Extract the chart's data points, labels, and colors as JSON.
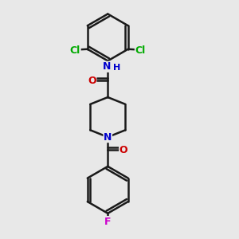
{
  "background_color": "#e8e8e8",
  "bond_color": "#1a1a1a",
  "bond_width": 1.8,
  "atom_colors": {
    "N": "#0000cc",
    "O": "#cc0000",
    "Cl": "#00aa00",
    "F": "#cc00cc",
    "C": "#1a1a1a",
    "H": "#888888"
  },
  "figsize": [
    3.0,
    3.0
  ],
  "dpi": 100,
  "xlim": [
    0,
    10
  ],
  "ylim": [
    0,
    10
  ]
}
